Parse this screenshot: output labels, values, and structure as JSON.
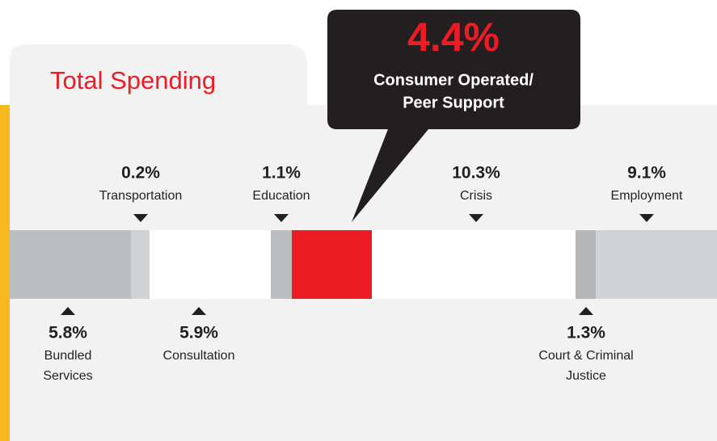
{
  "title": "Total Spending",
  "callout": {
    "value": "4.4%",
    "lines": [
      "Consumer Operated/",
      "Peer Support"
    ]
  },
  "above": [
    {
      "value": "0.2%",
      "lines": [
        "Transportation"
      ]
    },
    {
      "value": "1.1%",
      "lines": [
        "Education"
      ]
    },
    {
      "value": "10.3%",
      "lines": [
        "Crisis"
      ]
    },
    {
      "value": "9.1%",
      "lines": [
        "Employment"
      ]
    }
  ],
  "below": [
    {
      "value": "5.8%",
      "lines": [
        "Bundled",
        "Services"
      ]
    },
    {
      "value": "5.9%",
      "lines": [
        "Consultation"
      ]
    },
    {
      "value": "1.3%",
      "lines": [
        "Court & Criminal",
        "Justice"
      ]
    }
  ]
}
